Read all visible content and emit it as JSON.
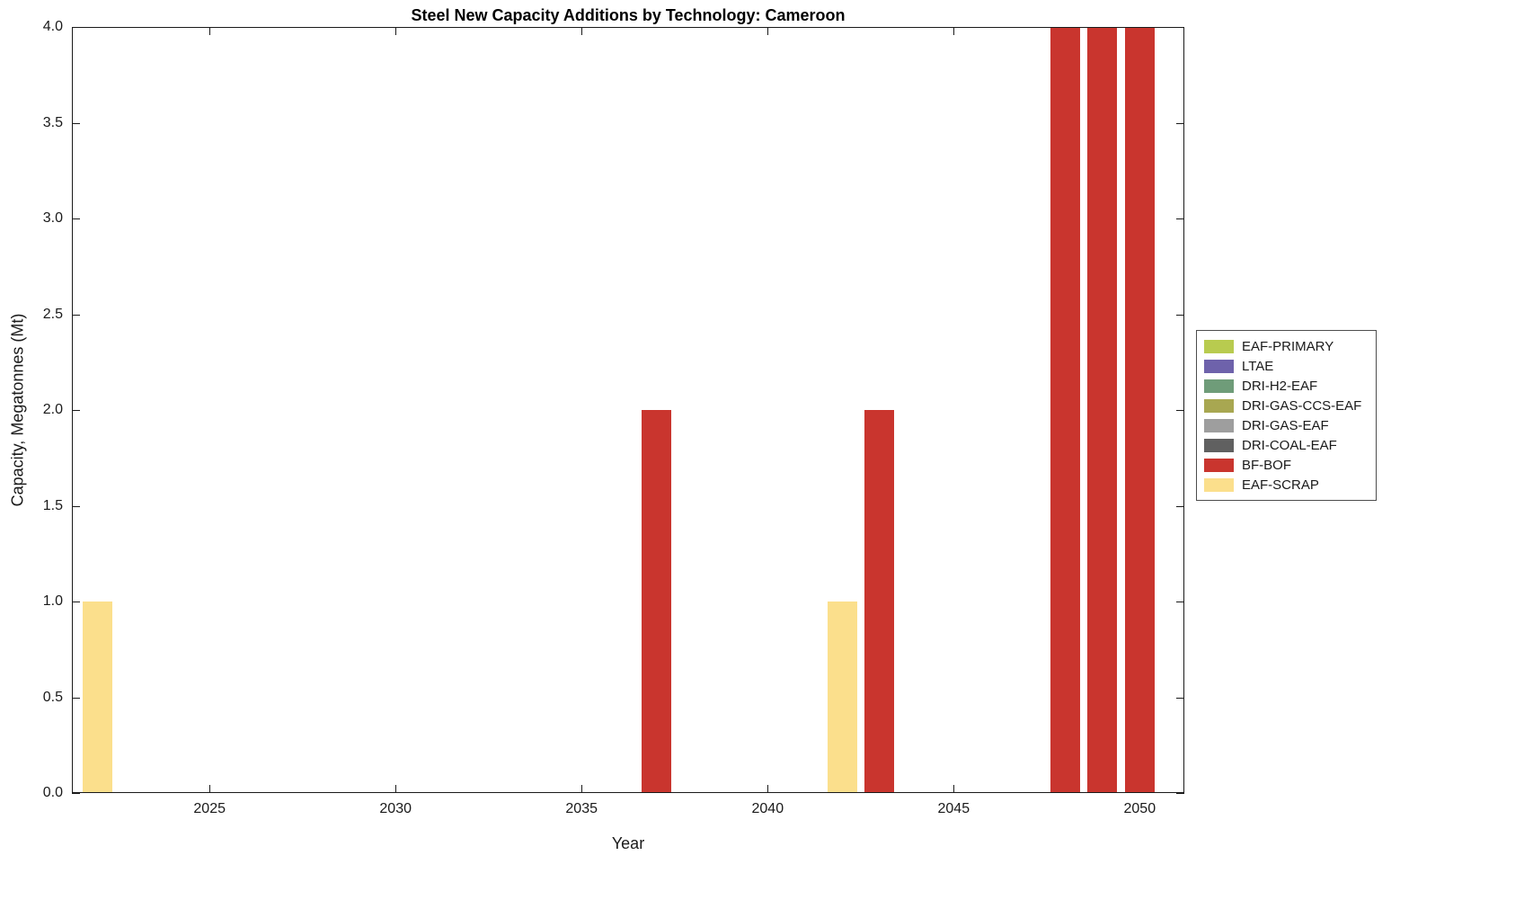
{
  "chart_data": {
    "type": "bar",
    "title": "Steel New Capacity Additions by Technology: Cameroon",
    "xlabel": "Year",
    "ylabel": "Capacity, Megatonnes (Mt)",
    "xlim": [
      2021.3,
      2051.2
    ],
    "ylim": [
      0,
      4
    ],
    "grid": false,
    "legend_position": "right-outside",
    "axis_color": "#1a1a1a",
    "x_ticks": [
      2025,
      2030,
      2035,
      2040,
      2045,
      2050
    ],
    "x_tick_labels": [
      "2025",
      "2030",
      "2035",
      "2040",
      "2045",
      "2050"
    ],
    "y_ticks": [
      0,
      0.5,
      1,
      1.5,
      2,
      2.5,
      3,
      3.5,
      4
    ],
    "y_tick_labels": [
      "0.0",
      "0.5",
      "1.0",
      "1.5",
      "2.0",
      "2.5",
      "3.0",
      "3.5",
      "4.0"
    ],
    "bar_width_years": 0.8,
    "legend": [
      {
        "label": "EAF-PRIMARY",
        "color": "#b8cb4f"
      },
      {
        "label": "LTAE",
        "color": "#6e62ab"
      },
      {
        "label": "DRI-H2-EAF",
        "color": "#6f9c79"
      },
      {
        "label": "DRI-GAS-CCS-EAF",
        "color": "#a8a751"
      },
      {
        "label": "DRI-GAS-EAF",
        "color": "#9e9e9e"
      },
      {
        "label": "DRI-COAL-EAF",
        "color": "#606060"
      },
      {
        "label": "BF-BOF",
        "color": "#c9352e"
      },
      {
        "label": "EAF-SCRAP",
        "color": "#fbdf8c"
      }
    ],
    "bars": [
      {
        "year": 2022,
        "value": 1.0,
        "series": "EAF-SCRAP"
      },
      {
        "year": 2037,
        "value": 2.0,
        "series": "BF-BOF"
      },
      {
        "year": 2042,
        "value": 1.0,
        "series": "EAF-SCRAP"
      },
      {
        "year": 2043,
        "value": 2.0,
        "series": "BF-BOF"
      },
      {
        "year": 2048,
        "value": 4.0,
        "series": "BF-BOF"
      },
      {
        "year": 2049,
        "value": 4.0,
        "series": "BF-BOF"
      },
      {
        "year": 2050,
        "value": 4.0,
        "series": "BF-BOF"
      }
    ]
  }
}
